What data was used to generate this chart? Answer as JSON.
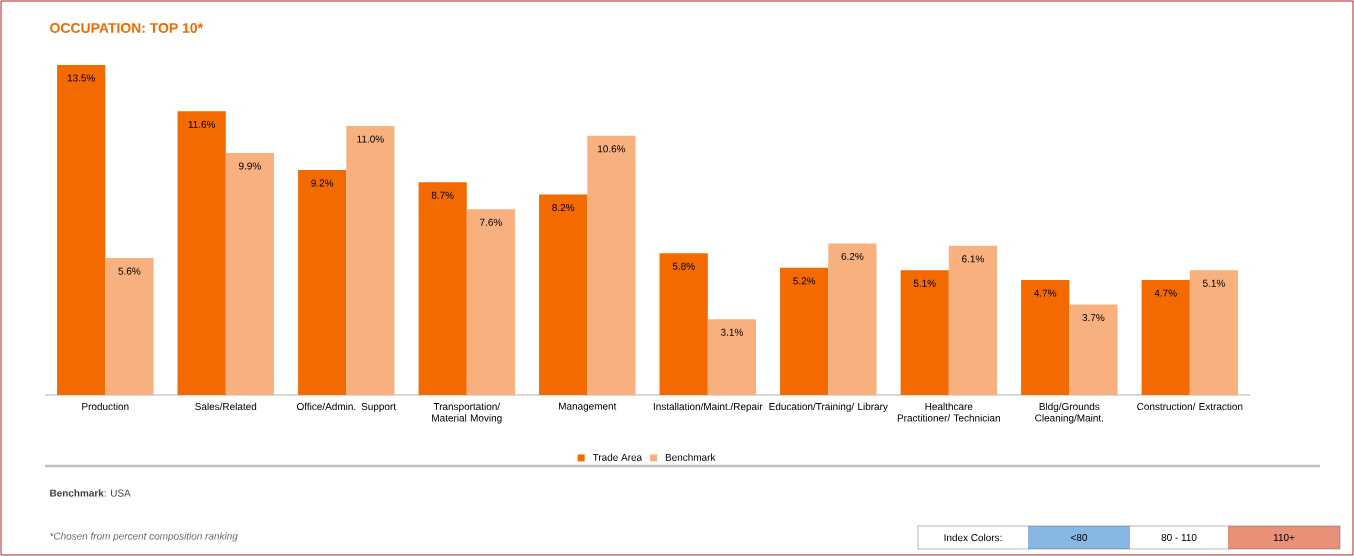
{
  "chart_data": {
    "type": "bar",
    "title": "OCCUPATION: TOP 10*",
    "categories": [
      "Production",
      "Sales/Related",
      "Office/Admin. Support",
      "Transportation/ Material Moving",
      "Management",
      "Installation/Maint./Repair",
      "Education/Training/ Library",
      "Healthcare Practitioner/ Technician",
      "Bldg/Grounds Cleaning/Maint.",
      "Construction/ Extraction"
    ],
    "series": [
      {
        "name": "Trade Area",
        "color": "#f26a00",
        "values": [
          13.5,
          11.6,
          9.2,
          8.7,
          8.2,
          5.8,
          5.2,
          5.1,
          4.7,
          4.7
        ],
        "value_labels": [
          "13.5%",
          "11.6%",
          "9.2%",
          "8.7%",
          "8.2%",
          "5.8%",
          "5.2%",
          "5.1%",
          "4.7%",
          "4.7%"
        ]
      },
      {
        "name": "Benchmark",
        "color": "#f8b07e",
        "values": [
          5.6,
          9.9,
          11.0,
          7.6,
          10.6,
          3.1,
          6.2,
          6.1,
          3.7,
          5.1
        ],
        "value_labels": [
          "5.6%",
          "9.9%",
          "11.0%",
          "7.6%",
          "10.6%",
          "3.1%",
          "6.2%",
          "6.1%",
          "3.7%",
          "5.1%"
        ]
      }
    ],
    "legend": "bottom",
    "annotations": [
      "**Benchmark**: USA",
      "*Chosen from percent composition ranking",
      "Index Colors:",
      "<80",
      "80 - 110",
      "110+"
    ]
  }
}
